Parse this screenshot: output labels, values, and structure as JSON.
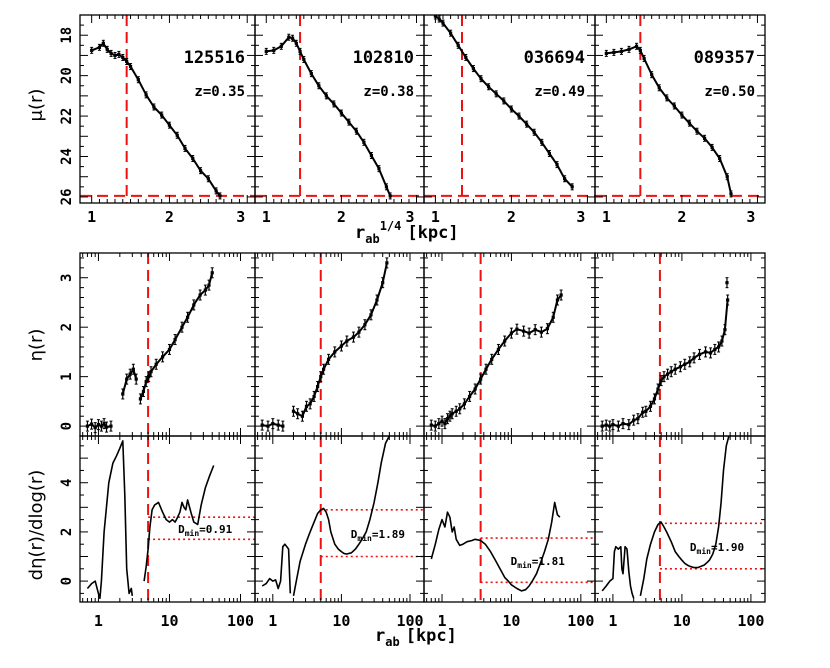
{
  "figure": {
    "top_xlabel": "r",
    "top_xlabel_sub": "ab",
    "top_xlabel_sup": "1/4",
    "top_xlabel_unit": "[kpc]",
    "bottom_xlabel": "r",
    "bottom_xlabel_sub": "ab",
    "bottom_xlabel_unit": "[kpc]",
    "row_ylabels": [
      "μ(r)",
      "η(r)",
      "dη(r)/dlog(r)"
    ]
  },
  "chart_data": [
    {
      "type": "line",
      "row": "surface-brightness",
      "xlabel": "r_ab^1/4 [kpc]",
      "ylabel": "μ(r)",
      "xlim": [
        0.85,
        3.1
      ],
      "ylim": [
        26.3,
        17.0
      ],
      "xticks": [
        1,
        2,
        3
      ],
      "yticks": [
        18,
        20,
        22,
        24,
        26
      ],
      "panels": [
        {
          "id": "125516",
          "z": "z=0.35",
          "vline_x": 1.45,
          "hline_y": 25.95,
          "x": [
            1.0,
            1.1,
            1.15,
            1.2,
            1.25,
            1.3,
            1.35,
            1.4,
            1.45,
            1.5,
            1.6,
            1.7,
            1.8,
            1.9,
            2.0,
            2.1,
            2.2,
            2.3,
            2.4,
            2.5,
            2.6,
            2.65
          ],
          "y": [
            18.75,
            18.6,
            18.4,
            18.7,
            18.9,
            19.0,
            18.95,
            19.1,
            19.3,
            19.55,
            20.2,
            20.95,
            21.55,
            21.95,
            22.45,
            22.95,
            23.6,
            24.1,
            24.7,
            25.1,
            25.7,
            25.95
          ]
        },
        {
          "id": "102810",
          "z": "z=0.38",
          "vline_x": 1.45,
          "hline_y": 25.95,
          "x": [
            1.0,
            1.1,
            1.2,
            1.3,
            1.35,
            1.4,
            1.45,
            1.5,
            1.6,
            1.7,
            1.8,
            1.9,
            2.0,
            2.1,
            2.2,
            2.3,
            2.4,
            2.5,
            2.6,
            2.65
          ],
          "y": [
            18.8,
            18.75,
            18.55,
            18.1,
            18.15,
            18.4,
            18.8,
            19.2,
            19.9,
            20.5,
            21.0,
            21.4,
            21.85,
            22.3,
            22.75,
            23.3,
            23.95,
            24.6,
            25.5,
            25.95
          ]
        },
        {
          "id": "036694",
          "z": "z=0.49",
          "vline_x": 1.35,
          "hline_y": 25.95,
          "x": [
            1.0,
            1.05,
            1.1,
            1.2,
            1.3,
            1.4,
            1.5,
            1.6,
            1.7,
            1.8,
            1.9,
            2.0,
            2.1,
            2.2,
            2.3,
            2.4,
            2.5,
            2.6,
            2.7,
            2.8
          ],
          "y": [
            17.05,
            17.2,
            17.4,
            17.9,
            18.5,
            19.1,
            19.65,
            20.15,
            20.55,
            20.9,
            21.25,
            21.65,
            22.0,
            22.4,
            22.8,
            23.3,
            23.85,
            24.4,
            25.1,
            25.5
          ]
        },
        {
          "id": "089357",
          "z": "z=0.50",
          "vline_x": 1.45,
          "hline_y": 25.95,
          "x": [
            1.0,
            1.1,
            1.2,
            1.3,
            1.4,
            1.45,
            1.5,
            1.6,
            1.7,
            1.8,
            1.9,
            2.0,
            2.1,
            2.2,
            2.3,
            2.4,
            2.5,
            2.6,
            2.65
          ],
          "y": [
            18.9,
            18.85,
            18.8,
            18.7,
            18.55,
            18.75,
            19.15,
            19.95,
            20.6,
            21.1,
            21.5,
            21.95,
            22.35,
            22.75,
            23.1,
            23.55,
            24.1,
            25.0,
            25.85
          ]
        }
      ]
    },
    {
      "type": "line",
      "row": "eta",
      "xlabel": "r_ab [kpc]",
      "ylabel": "η(r)",
      "xscale": "log",
      "xlim": [
        0.55,
        160
      ],
      "ylim": [
        -0.2,
        3.5
      ],
      "yticks": [
        0,
        1,
        2,
        3
      ],
      "panels": [
        {
          "id": "125516",
          "vline_x": 5.0,
          "segments": [
            {
              "x": [
                0.7,
                0.8,
                0.9,
                1.0,
                1.1,
                1.2,
                1.3,
                1.5
              ],
              "y": [
                0.0,
                0.04,
                -0.03,
                0.03,
                0.0,
                0.05,
                -0.02,
                0.0
              ]
            },
            {
              "x": [
                2.2,
                2.5,
                2.8,
                3.1,
                3.4
              ],
              "y": [
                0.65,
                0.95,
                1.05,
                1.15,
                0.95
              ]
            },
            {
              "x": [
                3.9,
                4.3,
                4.7,
                5.1,
                5.5,
                6.5,
                8,
                10,
                12,
                15,
                18,
                22,
                27,
                32,
                36,
                40
              ],
              "y": [
                0.55,
                0.7,
                0.9,
                1.0,
                1.1,
                1.25,
                1.4,
                1.55,
                1.75,
                2.0,
                2.2,
                2.45,
                2.65,
                2.75,
                2.85,
                3.1
              ]
            }
          ]
        },
        {
          "id": "102810",
          "vline_x": 5.0,
          "segments": [
            {
              "x": [
                0.7,
                0.85,
                1.0,
                1.2,
                1.4
              ],
              "y": [
                0.02,
                0.0,
                0.05,
                0.02,
                0.0
              ]
            },
            {
              "x": [
                2.0,
                2.3,
                2.7,
                3.1,
                3.5,
                4.0,
                4.5,
                5.0,
                5.5,
                6.5,
                8,
                10,
                12,
                15,
                18,
                22,
                27,
                33,
                40,
                46
              ],
              "y": [
                0.3,
                0.25,
                0.2,
                0.4,
                0.45,
                0.6,
                0.8,
                1.0,
                1.15,
                1.35,
                1.5,
                1.62,
                1.72,
                1.8,
                1.9,
                2.05,
                2.25,
                2.55,
                2.9,
                3.3
              ]
            }
          ]
        },
        {
          "id": "036694",
          "vline_x": 3.6,
          "segments": [
            {
              "x": [
                0.7,
                0.8,
                0.9,
                1.0,
                1.1,
                1.2,
                1.3,
                1.4,
                1.6,
                1.8,
                2.1,
                2.5,
                3.0,
                3.6,
                4.3,
                5.2,
                6.5,
                8,
                10,
                12,
                15,
                18,
                22,
                27,
                33,
                40,
                46,
                52
              ],
              "y": [
                0.02,
                0.0,
                0.05,
                0.1,
                0.05,
                0.15,
                0.2,
                0.25,
                0.3,
                0.35,
                0.45,
                0.6,
                0.75,
                0.95,
                1.15,
                1.35,
                1.55,
                1.72,
                1.88,
                1.96,
                1.92,
                1.88,
                1.95,
                1.9,
                1.97,
                2.2,
                2.55,
                2.65
              ]
            }
          ]
        },
        {
          "id": "089357",
          "vline_x": 4.8,
          "segments": [
            {
              "x": [
                0.7,
                0.8,
                0.9,
                1.0,
                1.2,
                1.4,
                1.7,
                2.0,
                2.3,
                2.7,
                3.0,
                3.5,
                4.0,
                4.5,
                5.0,
                5.5,
                6.2,
                7,
                8,
                9.5,
                11,
                13,
                15,
                18,
                22,
                26,
                30,
                34,
                38,
                42,
                46
              ],
              "y": [
                0.0,
                0.02,
                0.0,
                0.03,
                0.0,
                0.05,
                0.03,
                0.12,
                0.15,
                0.28,
                0.3,
                0.4,
                0.55,
                0.75,
                0.92,
                1.0,
                1.05,
                1.1,
                1.15,
                1.2,
                1.25,
                1.3,
                1.38,
                1.45,
                1.5,
                1.48,
                1.55,
                1.6,
                1.72,
                1.95,
                2.55
              ]
            },
            {
              "x": [
                45
              ],
              "y": [
                2.9
              ]
            }
          ]
        }
      ]
    },
    {
      "type": "line",
      "row": "derivative",
      "xlabel": "r_ab [kpc]",
      "ylabel": "dη(r)/dlog(r)",
      "xscale": "log",
      "xlim": [
        0.55,
        160
      ],
      "ylim": [
        -0.85,
        5.9
      ],
      "xticks": [
        1,
        10,
        100
      ],
      "yticks": [
        0,
        2,
        4
      ],
      "panels": [
        {
          "id": "125516",
          "vline_x": 5.0,
          "hlines": [
            2.6,
            1.7
          ],
          "dmin_label": "D",
          "dmin_sub": "min",
          "dmin_value": "=0.91",
          "segments": [
            {
              "x": [
                0.7,
                0.8,
                0.9,
                1.0,
                1.05,
                1.1,
                1.2,
                1.4,
                1.6,
                1.8,
                2.0,
                2.2,
                2.35,
                2.5,
                2.7,
                2.9,
                3.0
              ],
              "y": [
                -0.3,
                -0.1,
                0.0,
                -0.5,
                -0.7,
                0.0,
                2.0,
                4.0,
                4.8,
                5.1,
                5.4,
                5.7,
                3.5,
                0.5,
                -0.5,
                -0.3,
                -0.6
              ]
            },
            {
              "x": [
                4.4,
                4.7,
                5.0,
                5.3,
                5.7,
                6.2,
                7,
                8,
                9,
                10,
                11,
                12,
                13,
                14,
                15,
                16,
                17,
                18,
                20,
                22,
                25,
                28,
                32,
                37,
                42
              ],
              "y": [
                0.0,
                0.6,
                1.3,
                2.2,
                2.9,
                3.1,
                3.2,
                2.8,
                2.5,
                2.4,
                2.5,
                2.4,
                2.6,
                2.8,
                3.2,
                3.0,
                2.9,
                3.3,
                2.8,
                2.4,
                2.3,
                3.1,
                3.8,
                4.3,
                4.7
              ]
            }
          ]
        },
        {
          "id": "102810",
          "vline_x": 5.0,
          "hlines": [
            2.9,
            1.0
          ],
          "dmin_label": "D",
          "dmin_sub": "min",
          "dmin_value": "=1.89",
          "segments": [
            {
              "x": [
                0.7,
                0.8,
                0.9,
                1.0,
                1.1,
                1.2,
                1.3,
                1.4,
                1.5,
                1.6,
                1.7,
                1.8
              ],
              "y": [
                -0.2,
                -0.1,
                0.1,
                0.0,
                0.05,
                -0.3,
                0.0,
                1.4,
                1.5,
                1.4,
                1.3,
                -0.5
              ]
            },
            {
              "x": [
                2.0,
                2.2,
                2.5,
                3.0,
                3.5,
                4.0,
                4.5,
                5.0,
                5.5,
                6.0,
                6.5,
                7,
                8,
                9,
                10,
                11,
                12,
                14,
                16,
                18,
                20,
                23,
                26,
                30,
                34,
                38,
                44,
                50
              ],
              "y": [
                -0.6,
                0.0,
                0.8,
                1.5,
                2.0,
                2.4,
                2.75,
                2.9,
                2.95,
                2.8,
                2.5,
                2.0,
                1.5,
                1.3,
                1.2,
                1.12,
                1.1,
                1.15,
                1.3,
                1.5,
                1.7,
                2.0,
                2.5,
                3.2,
                4.0,
                4.8,
                5.6,
                5.9
              ]
            }
          ]
        },
        {
          "id": "036694",
          "vline_x": 3.6,
          "hlines": [
            1.75,
            -0.05
          ],
          "dmin_label": "D",
          "dmin_sub": "min",
          "dmin_value": "=1.81",
          "segments": [
            {
              "x": [
                0.7,
                0.8,
                0.9,
                1.0,
                1.1,
                1.2,
                1.3,
                1.4,
                1.5,
                1.6,
                1.8,
                2.0,
                2.3,
                2.7,
                3.0,
                3.6,
                4.2,
                5,
                6,
                7,
                8,
                9,
                10,
                12,
                14,
                16,
                18,
                20,
                23,
                26,
                30,
                34,
                38,
                42,
                46,
                50
              ],
              "y": [
                0.9,
                1.5,
                2.1,
                2.5,
                2.2,
                2.8,
                2.6,
                2.0,
                2.2,
                1.7,
                1.45,
                1.5,
                1.6,
                1.65,
                1.7,
                1.65,
                1.5,
                1.2,
                0.8,
                0.45,
                0.15,
                0.0,
                -0.15,
                -0.3,
                -0.4,
                -0.35,
                -0.2,
                0.0,
                0.3,
                0.7,
                1.2,
                1.7,
                2.4,
                3.2,
                2.7,
                2.6
              ]
            }
          ]
        },
        {
          "id": "089357",
          "vline_x": 4.8,
          "hlines": [
            2.35,
            0.5
          ],
          "dmin_label": "D",
          "dmin_sub": "min",
          "dmin_value": "=1.90",
          "segments": [
            {
              "x": [
                0.7,
                0.8,
                0.9,
                1.0,
                1.05,
                1.1,
                1.2,
                1.3,
                1.35,
                1.4,
                1.5,
                1.6,
                1.7,
                1.8,
                1.9,
                2.0
              ],
              "y": [
                -0.4,
                -0.2,
                0.0,
                0.1,
                1.2,
                1.4,
                1.3,
                1.4,
                0.5,
                0.3,
                1.4,
                1.3,
                0.4,
                -0.2,
                -0.5,
                -0.7
              ]
            },
            {
              "x": [
                2.5,
                2.8,
                3.1,
                3.5,
                4.0,
                4.5,
                5.0,
                5.5,
                6.0,
                7,
                8,
                9,
                10,
                11,
                12,
                13,
                15,
                17,
                19,
                21,
                23,
                25,
                28,
                31,
                34,
                37,
                40,
                44,
                48
              ],
              "y": [
                -0.6,
                0.1,
                0.9,
                1.5,
                2.0,
                2.3,
                2.4,
                2.2,
                2.0,
                1.6,
                1.2,
                1.0,
                0.85,
                0.72,
                0.65,
                0.6,
                0.55,
                0.55,
                0.6,
                0.65,
                0.75,
                0.85,
                1.1,
                1.5,
                2.2,
                3.2,
                4.5,
                5.5,
                5.9
              ]
            }
          ]
        }
      ]
    }
  ]
}
